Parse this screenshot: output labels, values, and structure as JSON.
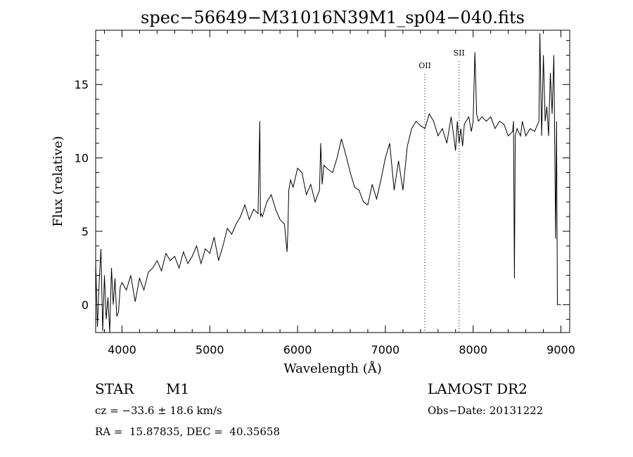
{
  "chart_data": {
    "type": "line",
    "title": "spec−56649−M31016N39M1_sp04−040.fits",
    "xlabel": "Wavelength (Å)",
    "ylabel": "Flux (relative)",
    "xlim": [
      3700,
      9100
    ],
    "ylim": [
      -1.9,
      18.7
    ],
    "xticks": [
      4000,
      5000,
      6000,
      7000,
      8000,
      9000
    ],
    "yticks": [
      0,
      5,
      10,
      15
    ],
    "grid": false,
    "line_color": "#000000",
    "line_annotations": [
      {
        "label": "OII",
        "x": 7450
      },
      {
        "label": "SII",
        "x": 7840
      }
    ],
    "series": [
      {
        "x": [
          3700,
          3720,
          3740,
          3760,
          3780,
          3800,
          3820,
          3840,
          3860,
          3880,
          3900,
          3920,
          3940,
          3960,
          3980,
          4000,
          4050,
          4100,
          4150,
          4200,
          4250,
          4300,
          4350,
          4400,
          4450,
          4500,
          4550,
          4600,
          4650,
          4700,
          4750,
          4800,
          4850,
          4900,
          4950,
          5000,
          5050,
          5100,
          5150,
          5200,
          5250,
          5300,
          5350,
          5400,
          5450,
          5500,
          5550,
          5570,
          5577,
          5585,
          5600,
          5650,
          5700,
          5750,
          5800,
          5850,
          5880,
          5890,
          5900,
          5920,
          5950,
          6000,
          6050,
          6100,
          6150,
          6200,
          6250,
          6264,
          6280,
          6300,
          6350,
          6400,
          6450,
          6500,
          6550,
          6600,
          6650,
          6700,
          6750,
          6800,
          6850,
          6900,
          6950,
          7000,
          7050,
          7100,
          7150,
          7200,
          7250,
          7300,
          7350,
          7400,
          7450,
          7500,
          7550,
          7600,
          7650,
          7700,
          7750,
          7800,
          7820,
          7840,
          7860,
          7880,
          7900,
          7950,
          7980,
          8000,
          8020,
          8040,
          8060,
          8100,
          8150,
          8200,
          8250,
          8300,
          8350,
          8400,
          8450,
          8460,
          8470,
          8480,
          8500,
          8540,
          8560,
          8600,
          8650,
          8700,
          8750,
          8760,
          8780,
          8800,
          8820,
          8840,
          8860,
          8880,
          8900,
          8920,
          8940,
          8950,
          8960,
          8980,
          9000
        ],
        "values": [
          3.0,
          -1.5,
          1.5,
          3.8,
          -1.8,
          2.0,
          -1.0,
          0.5,
          -1.9,
          2.5,
          0.0,
          1.8,
          -0.8,
          -0.5,
          1.2,
          1.5,
          1.0,
          2.0,
          0.2,
          1.8,
          1.0,
          2.2,
          2.5,
          3.0,
          2.3,
          3.5,
          3.0,
          3.3,
          2.5,
          3.6,
          2.8,
          3.3,
          4.0,
          2.8,
          3.8,
          3.5,
          4.6,
          3.0,
          4.0,
          5.2,
          4.8,
          5.5,
          6.0,
          6.8,
          5.8,
          6.5,
          6.2,
          12.5,
          6.0,
          6.2,
          6.0,
          7.0,
          7.5,
          6.5,
          5.8,
          5.5,
          3.6,
          5.0,
          7.8,
          8.5,
          8.0,
          9.3,
          9.0,
          7.5,
          8.2,
          7.0,
          7.8,
          11.0,
          8.2,
          9.5,
          9.2,
          9.0,
          10.0,
          11.3,
          10.2,
          9.0,
          8.0,
          7.8,
          7.0,
          6.8,
          8.2,
          7.2,
          8.5,
          10.0,
          11.0,
          7.8,
          9.8,
          7.8,
          10.8,
          12.0,
          12.5,
          12.2,
          12.0,
          13.0,
          12.5,
          11.5,
          12.0,
          11.0,
          12.8,
          10.5,
          12.5,
          11.0,
          12.0,
          10.8,
          12.3,
          12.8,
          11.8,
          12.5,
          17.2,
          13.0,
          12.5,
          12.8,
          12.5,
          12.8,
          12.0,
          12.5,
          12.3,
          11.5,
          11.8,
          12.5,
          1.8,
          11.5,
          12.0,
          11.5,
          12.5,
          11.5,
          12.0,
          11.8,
          12.5,
          18.5,
          11.5,
          17.0,
          12.5,
          13.5,
          11.5,
          15.8,
          13.0,
          17.0,
          4.5,
          12.5,
          0.0,
          0.0,
          0.0
        ]
      }
    ]
  },
  "info": {
    "object_class": "STAR",
    "subclass": "M1",
    "survey": "LAMOST DR2",
    "cz": "cz = −33.6 ± 18.6 km/s",
    "obs_date": "Obs−Date: 20131222",
    "coords": "RA =  15.87835, DEC =  40.35658"
  }
}
